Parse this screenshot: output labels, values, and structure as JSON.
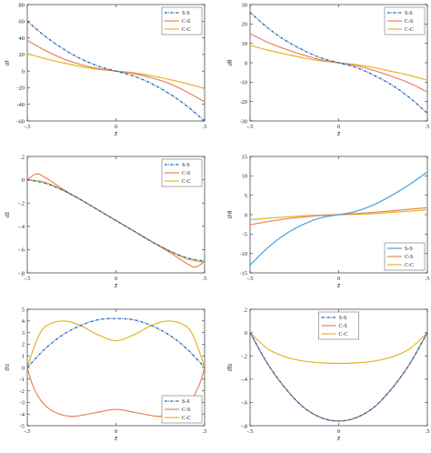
{
  "colors": {
    "ss_dash": "#1f5fb0",
    "ss_blue": "#4aa0d8",
    "cs_orange": "#e8815a",
    "cc_yellow": "#e6b422",
    "ss_dark": "#6b3b3b"
  },
  "chart_data": [
    {
      "type": "line",
      "ylabel": "σ̄r",
      "xlabel": "z̄",
      "xlim": [
        -0.5,
        0.5
      ],
      "ylim": [
        -60,
        80
      ],
      "xticks": [
        -0.5,
        0,
        0.5
      ],
      "yticks": [
        -60,
        -40,
        -20,
        0,
        20,
        40,
        60,
        80
      ],
      "legend": "top-right",
      "series": [
        {
          "name": "S-S",
          "color": "#1f5fb0",
          "dash": true,
          "x": [
            -0.5,
            -0.4,
            -0.3,
            -0.2,
            -0.1,
            0,
            0.1,
            0.2,
            0.3,
            0.4,
            0.5
          ],
          "y": [
            60,
            42,
            27,
            15,
            6,
            0,
            -6,
            -15,
            -27,
            -42,
            -60
          ]
        },
        {
          "name": "C-S",
          "color": "#e8815a",
          "x": [
            -0.5,
            -0.4,
            -0.3,
            -0.2,
            -0.1,
            0,
            0.1,
            0.2,
            0.3,
            0.4,
            0.5
          ],
          "y": [
            37,
            25,
            15,
            8,
            3,
            0,
            -3,
            -8,
            -15,
            -25,
            -37
          ]
        },
        {
          "name": "C-C",
          "color": "#e6b422",
          "x": [
            -0.5,
            -0.4,
            -0.3,
            -0.2,
            -0.1,
            0,
            0.1,
            0.2,
            0.3,
            0.4,
            0.5
          ],
          "y": [
            21,
            15,
            10,
            5.5,
            2,
            0,
            -2,
            -5.5,
            -10,
            -15,
            -21
          ]
        }
      ]
    },
    {
      "type": "line",
      "ylabel": "σ̄θ",
      "xlabel": "z̄",
      "xlim": [
        -0.5,
        0.5
      ],
      "ylim": [
        -30,
        30
      ],
      "xticks": [
        -0.5,
        0,
        0.5
      ],
      "yticks": [
        -30,
        -20,
        -10,
        0,
        10,
        20,
        30
      ],
      "legend": "top-right",
      "series": [
        {
          "name": "S-S",
          "color": "#1f5fb0",
          "dash": true,
          "x": [
            -0.5,
            -0.4,
            -0.3,
            -0.2,
            -0.1,
            0,
            0.1,
            0.2,
            0.3,
            0.4,
            0.5
          ],
          "y": [
            26,
            18,
            11.5,
            6.5,
            2.5,
            0,
            -2.5,
            -6.5,
            -11.5,
            -18,
            -26
          ]
        },
        {
          "name": "C-S",
          "color": "#e8815a",
          "x": [
            -0.5,
            -0.4,
            -0.3,
            -0.2,
            -0.1,
            0,
            0.1,
            0.2,
            0.3,
            0.4,
            0.5
          ],
          "y": [
            15,
            10.5,
            7,
            4,
            1.5,
            0,
            -1.5,
            -4,
            -7,
            -10.5,
            -15
          ]
        },
        {
          "name": "C-C",
          "color": "#e6b422",
          "x": [
            -0.5,
            -0.4,
            -0.3,
            -0.2,
            -0.1,
            0,
            0.1,
            0.2,
            0.3,
            0.4,
            0.5
          ],
          "y": [
            9,
            6.5,
            4.5,
            2.5,
            1,
            0,
            -1,
            -2.5,
            -4.5,
            -6.5,
            -9
          ]
        }
      ]
    },
    {
      "type": "line",
      "ylabel": "σ̄z",
      "xlabel": "z̄",
      "xlim": [
        -0.5,
        0.5
      ],
      "ylim": [
        -0.8,
        0.2
      ],
      "xticks": [
        -0.5,
        0,
        0.5
      ],
      "yticks": [
        -0.8,
        -0.6,
        -0.4,
        -0.2,
        0,
        0.2
      ],
      "legend": "top-right",
      "series": [
        {
          "name": "S-S",
          "color": "#1f5fb0",
          "dash": true,
          "x": [
            -0.5,
            -0.4,
            -0.3,
            -0.2,
            -0.1,
            0,
            0.1,
            0.2,
            0.3,
            0.4,
            0.5
          ],
          "y": [
            0,
            -0.03,
            -0.09,
            -0.17,
            -0.26,
            -0.35,
            -0.44,
            -0.53,
            -0.61,
            -0.67,
            -0.7
          ]
        },
        {
          "name": "C-S",
          "color": "#e8815a",
          "x": [
            -0.5,
            -0.45,
            -0.4,
            -0.3,
            -0.2,
            -0.1,
            0,
            0.1,
            0.2,
            0.3,
            0.4,
            0.45,
            0.5
          ],
          "y": [
            0,
            0.05,
            0.02,
            -0.08,
            -0.17,
            -0.26,
            -0.35,
            -0.44,
            -0.53,
            -0.62,
            -0.72,
            -0.75,
            -0.7
          ]
        },
        {
          "name": "C-C",
          "color": "#e6b422",
          "x": [
            -0.5,
            -0.4,
            -0.3,
            -0.2,
            -0.1,
            0,
            0.1,
            0.2,
            0.3,
            0.4,
            0.5
          ],
          "y": [
            0,
            -0.02,
            -0.09,
            -0.17,
            -0.26,
            -0.35,
            -0.44,
            -0.53,
            -0.61,
            -0.68,
            -0.71
          ]
        }
      ]
    },
    {
      "type": "line",
      "ylabel": "τ̄rθ",
      "xlabel": "z̄",
      "xlim": [
        -0.5,
        0.5
      ],
      "ylim": [
        -15,
        15
      ],
      "xticks": [
        -0.5,
        0,
        0.5
      ],
      "yticks": [
        -15,
        -10,
        -5,
        0,
        5,
        10,
        15
      ],
      "legend": "bottom-right",
      "series": [
        {
          "name": "S-S",
          "color": "#4aa0d8",
          "x": [
            -0.5,
            -0.4,
            -0.3,
            -0.2,
            -0.1,
            0,
            0.1,
            0.2,
            0.3,
            0.4,
            0.5
          ],
          "y": [
            -13,
            -8.5,
            -5,
            -2.5,
            -0.8,
            0,
            0.9,
            2.6,
            5,
            7.8,
            11
          ]
        },
        {
          "name": "C-S",
          "color": "#e8815a",
          "x": [
            -0.5,
            -0.4,
            -0.3,
            -0.2,
            -0.1,
            0,
            0.1,
            0.2,
            0.3,
            0.4,
            0.5
          ],
          "y": [
            -2.6,
            -1.8,
            -1.1,
            -0.6,
            -0.2,
            0,
            0.3,
            0.6,
            1,
            1.4,
            1.8
          ]
        },
        {
          "name": "C-C",
          "color": "#e6b422",
          "x": [
            -0.5,
            -0.4,
            -0.3,
            -0.2,
            -0.1,
            0,
            0.1,
            0.2,
            0.3,
            0.4,
            0.5
          ],
          "y": [
            -1.3,
            -0.9,
            -0.6,
            -0.3,
            -0.1,
            0,
            0.1,
            0.3,
            0.6,
            0.9,
            1.3
          ]
        }
      ]
    },
    {
      "type": "line",
      "ylabel": "τ̄rz",
      "xlabel": "z̄",
      "xlim": [
        -0.5,
        0.5
      ],
      "ylim": [
        -5,
        5
      ],
      "xticks": [
        -0.5,
        0,
        0.5
      ],
      "yticks": [
        -5,
        -4,
        -3,
        -2,
        -1,
        0,
        1,
        2,
        3,
        4,
        5
      ],
      "legend": "bottom-right",
      "series": [
        {
          "name": "S-S",
          "color": "#1f5fb0",
          "dash": true,
          "x": [
            -0.5,
            -0.4,
            -0.3,
            -0.2,
            -0.1,
            0,
            0.1,
            0.2,
            0.3,
            0.4,
            0.5
          ],
          "y": [
            0,
            1.6,
            2.8,
            3.6,
            4.1,
            4.2,
            4.1,
            3.6,
            2.8,
            1.6,
            0
          ]
        },
        {
          "name": "C-S",
          "color": "#e8815a",
          "x": [
            -0.5,
            -0.47,
            -0.42,
            -0.35,
            -0.25,
            -0.12,
            0,
            0.12,
            0.25,
            0.35,
            0.42,
            0.47,
            0.5
          ],
          "y": [
            0,
            -1.5,
            -2.9,
            -3.8,
            -4.2,
            -3.9,
            -3.6,
            -3.9,
            -4.2,
            -3.8,
            -2.9,
            -1.5,
            0
          ]
        },
        {
          "name": "C-C",
          "color": "#e6b422",
          "x": [
            -0.5,
            -0.45,
            -0.4,
            -0.3,
            -0.2,
            -0.1,
            0,
            0.1,
            0.2,
            0.3,
            0.4,
            0.45,
            0.5
          ],
          "y": [
            0,
            2.2,
            3.5,
            4.0,
            3.6,
            2.8,
            2.3,
            2.8,
            3.6,
            4.0,
            3.5,
            2.2,
            0
          ]
        }
      ]
    },
    {
      "type": "line",
      "ylabel": "τ̄θz",
      "xlabel": "z̄",
      "xlim": [
        -0.5,
        0.5
      ],
      "ylim": [
        -0.8,
        0.2
      ],
      "xticks": [
        -0.5,
        0,
        0.5
      ],
      "yticks": [
        -0.8,
        -0.6,
        -0.4,
        -0.2,
        0,
        0.2
      ],
      "legend": "top-center",
      "series": [
        {
          "name": "S-S",
          "color": "#1f5fb0",
          "dash": true,
          "x": [
            -0.5,
            -0.4,
            -0.3,
            -0.2,
            -0.1,
            0,
            0.1,
            0.2,
            0.3,
            0.4,
            0.5
          ],
          "y": [
            0,
            -0.27,
            -0.48,
            -0.64,
            -0.73,
            -0.76,
            -0.73,
            -0.64,
            -0.48,
            -0.27,
            0
          ]
        },
        {
          "name": "C-S",
          "color": "#e8815a",
          "x": [
            -0.5,
            -0.4,
            -0.3,
            -0.2,
            -0.1,
            0,
            0.1,
            0.2,
            0.3,
            0.4,
            0.5
          ],
          "y": [
            0,
            -0.27,
            -0.48,
            -0.64,
            -0.73,
            -0.76,
            -0.73,
            -0.64,
            -0.48,
            -0.27,
            0
          ]
        },
        {
          "name": "C-C",
          "color": "#e6b422",
          "x": [
            -0.5,
            -0.4,
            -0.3,
            -0.2,
            -0.1,
            0,
            0.1,
            0.2,
            0.3,
            0.4,
            0.5
          ],
          "y": [
            0,
            -0.14,
            -0.21,
            -0.245,
            -0.26,
            -0.265,
            -0.26,
            -0.245,
            -0.21,
            -0.14,
            0
          ]
        }
      ]
    }
  ]
}
